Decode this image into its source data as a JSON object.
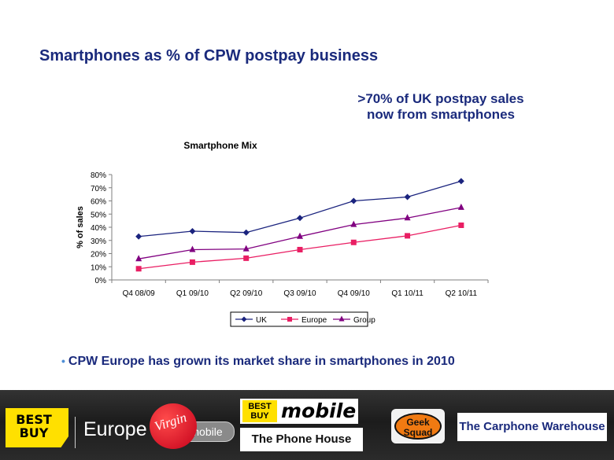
{
  "slide": {
    "title": "Smartphones as % of CPW postpay business",
    "callout_line1": ">70% of UK postpay sales",
    "callout_line2": "now from smartphones",
    "bullet": "CPW Europe has grown its market share in smartphones in 2010"
  },
  "footer_logos": {
    "best_buy": "BEST BUY",
    "europe": "Europe",
    "virgin": "Virgin",
    "virgin_mobile": "mobile",
    "best_buy_mobile_tag": "BEST BUY",
    "best_buy_mobile_word": "mobile",
    "phone_house": "The Phone House",
    "geek_squad": "Geek Squad",
    "carphone": "The Carphone Warehouse"
  },
  "chart_data": {
    "type": "line",
    "title": "Smartphone Mix",
    "xlabel": "",
    "ylabel": "% of sales",
    "categories": [
      "Q4 08/09",
      "Q1 09/10",
      "Q2 09/10",
      "Q3 09/10",
      "Q4 09/10",
      "Q1 10/11",
      "Q2 10/11"
    ],
    "ylim": [
      0,
      80
    ],
    "yticks": [
      "0%",
      "10%",
      "20%",
      "30%",
      "40%",
      "50%",
      "60%",
      "70%",
      "80%"
    ],
    "grid": false,
    "legend_position": "bottom",
    "series": [
      {
        "name": "UK",
        "values": [
          33,
          37,
          36,
          47,
          60,
          63,
          75
        ],
        "color": "#1a237e",
        "marker": "diamond"
      },
      {
        "name": "Europe",
        "values": [
          8.5,
          13.5,
          16.5,
          23,
          28.5,
          33.5,
          41.5
        ],
        "color": "#e91e63",
        "marker": "square"
      },
      {
        "name": "Group",
        "values": [
          16,
          23,
          23.5,
          33,
          42,
          47,
          55
        ],
        "color": "#800080",
        "marker": "triangle"
      }
    ]
  }
}
